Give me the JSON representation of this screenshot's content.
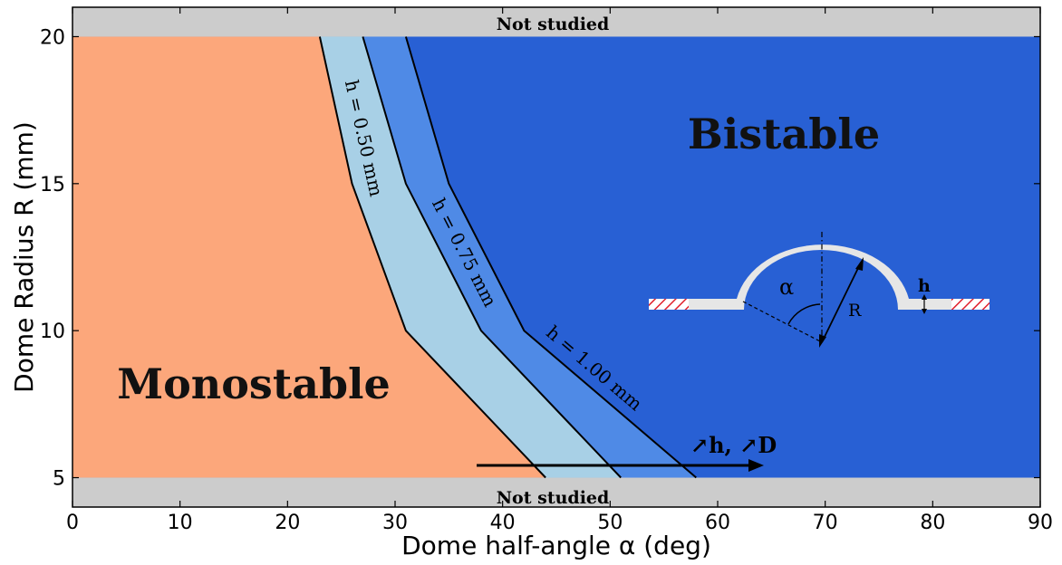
{
  "chart_data": {
    "type": "area",
    "xlabel": "Dome half-angle α (deg)",
    "ylabel": "Dome Radius R (mm)",
    "xlim": [
      0,
      90
    ],
    "ylim": [
      4,
      21
    ],
    "xticks": [
      0,
      10,
      20,
      30,
      40,
      50,
      60,
      70,
      80,
      90
    ],
    "yticks": [
      5,
      10,
      15,
      20
    ],
    "grid": false,
    "regions": {
      "monostable": "Monostable",
      "bistable": "Bistable",
      "not_studied_top": "Not studied",
      "not_studied_bottom": "Not studied"
    },
    "studied_range": [
      5,
      20
    ],
    "boundaries": [
      {
        "name": "h = 0.50 mm",
        "points": [
          [
            23,
            20
          ],
          [
            26,
            15
          ],
          [
            31,
            10
          ],
          [
            44,
            5
          ]
        ]
      },
      {
        "name": "h = 0.75 mm",
        "points": [
          [
            27,
            20
          ],
          [
            31,
            15
          ],
          [
            38,
            10
          ],
          [
            51,
            5
          ]
        ]
      },
      {
        "name": "h = 1.00 mm",
        "points": [
          [
            31,
            20
          ],
          [
            35,
            15
          ],
          [
            42,
            10
          ],
          [
            58,
            5
          ]
        ]
      }
    ],
    "trend_annotation": "↗h, ↗D",
    "colors": {
      "monostable": "#fca77b",
      "band_050_075": "#a8d0e6",
      "band_075_100": "#4f8ae6",
      "bistable": "#2860d4",
      "not_studied": "#cccccc",
      "hatch": "#e0202c",
      "dome": "#e6e6e6"
    },
    "inset": {
      "angle_label": "α",
      "radius_label": "R",
      "thickness_label": "h"
    }
  }
}
